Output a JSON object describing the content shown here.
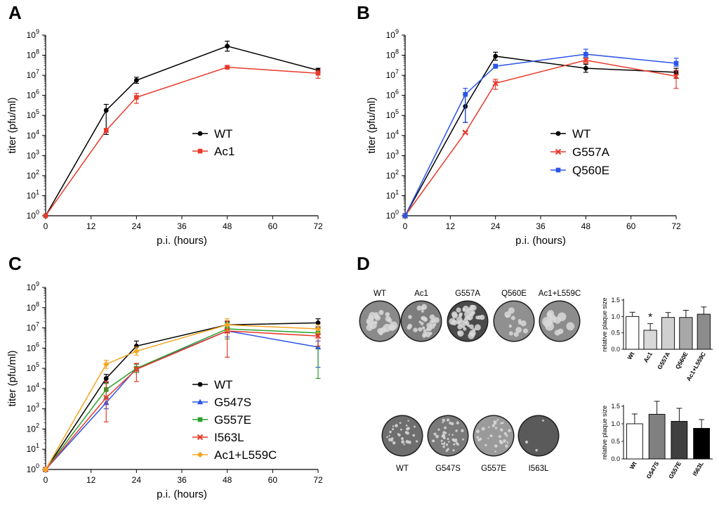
{
  "panels": {
    "A": "A",
    "B": "B",
    "C": "C",
    "D": "D"
  },
  "chart_data": [
    {
      "id": "A",
      "type": "line",
      "ylabel": "titer (pfu/ml)",
      "xlabel": "p.i. (hours)",
      "x_ticks": [
        0,
        12,
        24,
        36,
        48,
        60,
        72
      ],
      "y_ticks": [
        0,
        1,
        2,
        3,
        4,
        5,
        6,
        7,
        8,
        9
      ],
      "y_scale": "log10",
      "ylim_exp": [
        0,
        9
      ],
      "xlim": [
        0,
        72
      ],
      "x": [
        0,
        16,
        24,
        48,
        72
      ],
      "series": [
        {
          "name": "WT",
          "color": "#000000",
          "marker": "circle",
          "log_values": [
            0,
            5.25,
            6.75,
            8.45,
            7.25
          ],
          "err_up": [
            0,
            0.3,
            0.15,
            0.25,
            0.1
          ],
          "err_down": [
            0,
            1.2,
            0.15,
            0.25,
            0.1
          ]
        },
        {
          "name": "Ac1",
          "color": "#e8392b",
          "marker": "square",
          "log_values": [
            0,
            4.25,
            5.9,
            7.4,
            7.1
          ],
          "err_up": [
            0,
            0.1,
            0.2,
            0.05,
            0.15
          ],
          "err_down": [
            0,
            0.1,
            0.3,
            0.05,
            0.25
          ]
        }
      ]
    },
    {
      "id": "B",
      "type": "line",
      "ylabel": "titer (pfu/ml)",
      "xlabel": "p.i. (hours)",
      "x_ticks": [
        0,
        12,
        24,
        36,
        48,
        60,
        72
      ],
      "y_ticks": [
        0,
        1,
        2,
        3,
        4,
        5,
        6,
        7,
        8,
        9
      ],
      "y_scale": "log10",
      "ylim_exp": [
        0,
        9
      ],
      "xlim": [
        0,
        72
      ],
      "x": [
        0,
        16,
        24,
        48,
        72
      ],
      "series": [
        {
          "name": "WT",
          "color": "#000000",
          "marker": "circle",
          "log_values": [
            0,
            5.45,
            7.95,
            7.35,
            7.15
          ],
          "err_up": [
            0,
            0.6,
            0.2,
            0.2,
            0.2
          ],
          "err_down": [
            0,
            0.8,
            0.2,
            0.2,
            0.3
          ]
        },
        {
          "name": "G557A",
          "color": "#e8392b",
          "marker": "cross",
          "log_values": [
            0,
            4.15,
            6.6,
            7.75,
            6.95
          ],
          "err_up": [
            0,
            0.05,
            0.2,
            0.1,
            0.3
          ],
          "err_down": [
            0,
            0.05,
            0.3,
            0.15,
            0.6
          ]
        },
        {
          "name": "Q560E",
          "color": "#2b55e8",
          "marker": "square",
          "log_values": [
            0,
            6.05,
            7.45,
            8.05,
            7.6
          ],
          "err_up": [
            0,
            0.3,
            0.1,
            0.25,
            0.25
          ],
          "err_down": [
            0,
            1.4,
            0.1,
            0.15,
            0.15
          ]
        }
      ]
    },
    {
      "id": "C",
      "type": "line",
      "ylabel": "titer (pfu/ml)",
      "xlabel": "p.i. (hours)",
      "x_ticks": [
        0,
        12,
        24,
        36,
        48,
        60,
        72
      ],
      "y_ticks": [
        0,
        1,
        2,
        3,
        4,
        5,
        6,
        7,
        8,
        9
      ],
      "y_scale": "log10",
      "ylim_exp": [
        0,
        9
      ],
      "xlim": [
        0,
        72
      ],
      "x": [
        0,
        16,
        24,
        48,
        72
      ],
      "series": [
        {
          "name": "WT",
          "color": "#000000",
          "marker": "circle",
          "log_values": [
            0,
            4.5,
            6.1,
            7.15,
            7.25
          ],
          "err_up": [
            0,
            0.2,
            0.25,
            0.15,
            0.2
          ],
          "err_down": [
            0,
            0.2,
            0.25,
            0.15,
            0.2
          ]
        },
        {
          "name": "G547S",
          "color": "#2b55e8",
          "marker": "triangle",
          "log_values": [
            0,
            3.3,
            5.0,
            6.85,
            6.05
          ],
          "err_up": [
            0,
            0.2,
            0.2,
            0.3,
            0.3
          ],
          "err_down": [
            0,
            0.3,
            0.2,
            0.3,
            1.0
          ]
        },
        {
          "name": "G557E",
          "color": "#2ba12b",
          "marker": "square",
          "log_values": [
            0,
            3.95,
            5.0,
            6.95,
            6.75
          ],
          "err_up": [
            0,
            0.3,
            0.2,
            0.3,
            0.2
          ],
          "err_down": [
            0,
            0.4,
            0.2,
            0.5,
            2.25
          ]
        },
        {
          "name": "I563L",
          "color": "#e8392b",
          "marker": "cross",
          "log_values": [
            0,
            3.55,
            4.95,
            6.85,
            6.6
          ],
          "err_up": [
            0,
            0.8,
            0.3,
            0.5,
            0.4
          ],
          "err_down": [
            0,
            1.2,
            0.6,
            1.3,
            0.5
          ]
        },
        {
          "name": "Ac1+L559C",
          "color": "#f5a623",
          "marker": "diamond",
          "log_values": [
            0,
            5.2,
            5.85,
            7.15,
            6.95
          ],
          "err_up": [
            0,
            0.2,
            0.2,
            0.3,
            0.2
          ],
          "err_down": [
            0,
            0.2,
            0.2,
            0.3,
            0.2
          ]
        }
      ]
    },
    {
      "id": "D1",
      "type": "bar",
      "ylabel": "relative plaque size",
      "y_ticks": [
        "0.0",
        "0.5",
        "1.0",
        "1.5"
      ],
      "ylim": [
        0,
        1.5
      ],
      "categories": [
        "Wt",
        "Ac1",
        "G557A",
        "Q560E",
        "Ac1+L559C"
      ],
      "values": [
        1.0,
        0.58,
        0.97,
        0.97,
        1.07
      ],
      "errors": [
        0.13,
        0.2,
        0.15,
        0.22,
        0.22
      ],
      "annotation": "*"
    },
    {
      "id": "D2",
      "type": "bar",
      "ylabel": "relative plaque size",
      "y_ticks": [
        "0.0",
        "0.5",
        "1.0",
        "1.5"
      ],
      "ylim": [
        0,
        1.5
      ],
      "categories": [
        "Wt",
        "G547S",
        "G557E",
        "I563L"
      ],
      "values": [
        1.0,
        1.27,
        1.07,
        0.87
      ],
      "errors": [
        0.28,
        0.37,
        0.37,
        0.25
      ]
    }
  ],
  "plates": {
    "top": [
      "WT",
      "Ac1",
      "G557A",
      "Q560E",
      "Ac1+L559C"
    ],
    "bottom": [
      "WT",
      "G547S",
      "G557E",
      "I563L"
    ]
  },
  "colors": {
    "bar_top": [
      "#ffffff",
      "#d9d9d9",
      "#d0d0d0",
      "#a8a8a8",
      "#8c8c8c"
    ],
    "bar_bottom": [
      "#ffffff",
      "#808080",
      "#404040",
      "#000000"
    ]
  }
}
